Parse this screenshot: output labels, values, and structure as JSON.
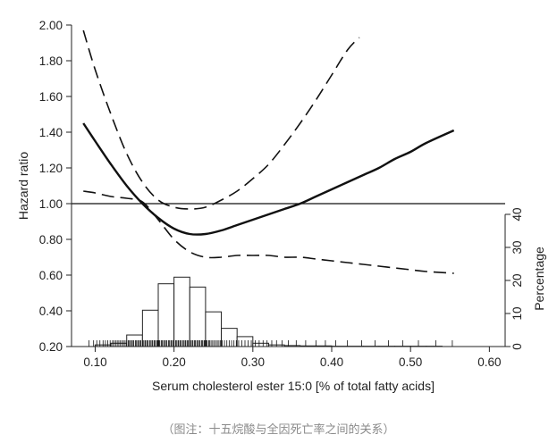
{
  "chart_data": {
    "type": "line",
    "title": "",
    "xlabel": "Serum cholesterol ester 15:0 [% of total fatty acids]",
    "ylabel": "Hazard ratio",
    "y2label": "Percentage",
    "xlim": [
      0.07,
      0.62
    ],
    "ylim": [
      0.2,
      2.0
    ],
    "y2lim": [
      0,
      40
    ],
    "xticks": [
      "0.10",
      "0.20",
      "0.30",
      "0.40",
      "0.50",
      "0.60"
    ],
    "xtick_values": [
      0.1,
      0.2,
      0.3,
      0.4,
      0.5,
      0.6
    ],
    "yticks": [
      "0.20",
      "0.40",
      "0.60",
      "0.80",
      "1.00",
      "1.20",
      "1.40",
      "1.60",
      "1.80",
      "2.00"
    ],
    "ytick_values": [
      0.2,
      0.4,
      0.6,
      0.8,
      1.0,
      1.2,
      1.4,
      1.6,
      1.8,
      2.0
    ],
    "y2ticks": [
      "0",
      "10",
      "20",
      "30",
      "40"
    ],
    "y2tick_values": [
      0,
      10,
      20,
      30,
      40
    ],
    "reference_line": 1.0,
    "grid": false,
    "series": [
      {
        "role": "estimate",
        "style": "solid",
        "x": [
          0.085,
          0.1,
          0.12,
          0.14,
          0.16,
          0.18,
          0.2,
          0.22,
          0.24,
          0.26,
          0.28,
          0.3,
          0.32,
          0.34,
          0.36,
          0.38,
          0.4,
          0.42,
          0.44,
          0.46,
          0.48,
          0.5,
          0.52,
          0.555
        ],
        "y": [
          1.45,
          1.35,
          1.22,
          1.1,
          1.0,
          0.92,
          0.86,
          0.83,
          0.83,
          0.85,
          0.88,
          0.91,
          0.94,
          0.97,
          1.0,
          1.04,
          1.08,
          1.12,
          1.16,
          1.2,
          1.25,
          1.29,
          1.34,
          1.41
        ]
      },
      {
        "role": "upper 95% CI",
        "style": "dashed",
        "x": [
          0.085,
          0.1,
          0.12,
          0.14,
          0.16,
          0.18,
          0.2,
          0.22,
          0.24,
          0.26,
          0.28,
          0.3,
          0.32,
          0.34,
          0.36,
          0.38,
          0.4,
          0.42,
          0.435
        ],
        "y": [
          1.97,
          1.75,
          1.5,
          1.28,
          1.12,
          1.02,
          0.98,
          0.97,
          0.98,
          1.02,
          1.07,
          1.14,
          1.22,
          1.33,
          1.45,
          1.58,
          1.72,
          1.86,
          1.93
        ]
      },
      {
        "role": "lower 95% CI",
        "style": "dashed",
        "x": [
          0.085,
          0.1,
          0.12,
          0.14,
          0.16,
          0.18,
          0.2,
          0.22,
          0.24,
          0.26,
          0.28,
          0.3,
          0.32,
          0.34,
          0.36,
          0.38,
          0.4,
          0.42,
          0.44,
          0.46,
          0.48,
          0.5,
          0.52,
          0.555
        ],
        "y": [
          1.07,
          1.06,
          1.04,
          1.03,
          1.01,
          0.91,
          0.8,
          0.73,
          0.7,
          0.7,
          0.71,
          0.71,
          0.71,
          0.7,
          0.7,
          0.69,
          0.68,
          0.67,
          0.66,
          0.65,
          0.64,
          0.63,
          0.62,
          0.61
        ]
      }
    ],
    "histogram": {
      "axis": "right",
      "bin_width": 0.02,
      "bin_starts": [
        0.1,
        0.12,
        0.14,
        0.16,
        0.18,
        0.2,
        0.22,
        0.24,
        0.26,
        0.28,
        0.3,
        0.32,
        0.34,
        0.36,
        0.38,
        0.4,
        0.42,
        0.44,
        0.46,
        0.48,
        0.5,
        0.52
      ],
      "percent": [
        0.5,
        1.0,
        3.5,
        11.0,
        19.0,
        21.0,
        18.0,
        10.5,
        5.5,
        3.0,
        1.0,
        0.5,
        0.3,
        0.2,
        0.2,
        0.1,
        0.1,
        0.1,
        0.1,
        0.1,
        0.1,
        0.1
      ]
    },
    "rug": [
      0.092,
      0.098,
      0.102,
      0.106,
      0.11,
      0.113,
      0.116,
      0.119,
      0.122,
      0.124,
      0.126,
      0.128,
      0.13,
      0.132,
      0.134,
      0.136,
      0.138,
      0.14,
      0.142,
      0.143,
      0.145,
      0.146,
      0.148,
      0.149,
      0.151,
      0.152,
      0.154,
      0.155,
      0.157,
      0.158,
      0.16,
      0.161,
      0.163,
      0.164,
      0.166,
      0.167,
      0.169,
      0.17,
      0.172,
      0.173,
      0.175,
      0.176,
      0.178,
      0.179,
      0.181,
      0.182,
      0.184,
      0.185,
      0.187,
      0.188,
      0.19,
      0.191,
      0.193,
      0.194,
      0.196,
      0.197,
      0.199,
      0.2,
      0.202,
      0.203,
      0.205,
      0.206,
      0.208,
      0.209,
      0.211,
      0.212,
      0.214,
      0.215,
      0.217,
      0.218,
      0.22,
      0.221,
      0.223,
      0.224,
      0.226,
      0.227,
      0.229,
      0.23,
      0.232,
      0.233,
      0.235,
      0.236,
      0.238,
      0.239,
      0.241,
      0.242,
      0.244,
      0.245,
      0.247,
      0.249,
      0.251,
      0.253,
      0.255,
      0.257,
      0.259,
      0.261,
      0.264,
      0.267,
      0.27,
      0.273,
      0.276,
      0.279,
      0.282,
      0.286,
      0.29,
      0.294,
      0.298,
      0.303,
      0.308,
      0.313,
      0.318,
      0.324,
      0.33,
      0.337,
      0.345,
      0.355,
      0.367,
      0.38,
      0.392,
      0.405,
      0.42,
      0.438,
      0.455,
      0.472,
      0.49,
      0.51,
      0.532,
      0.553
    ]
  },
  "caption": "（图注：十五烷酸与全因死亡率之间的关系）"
}
